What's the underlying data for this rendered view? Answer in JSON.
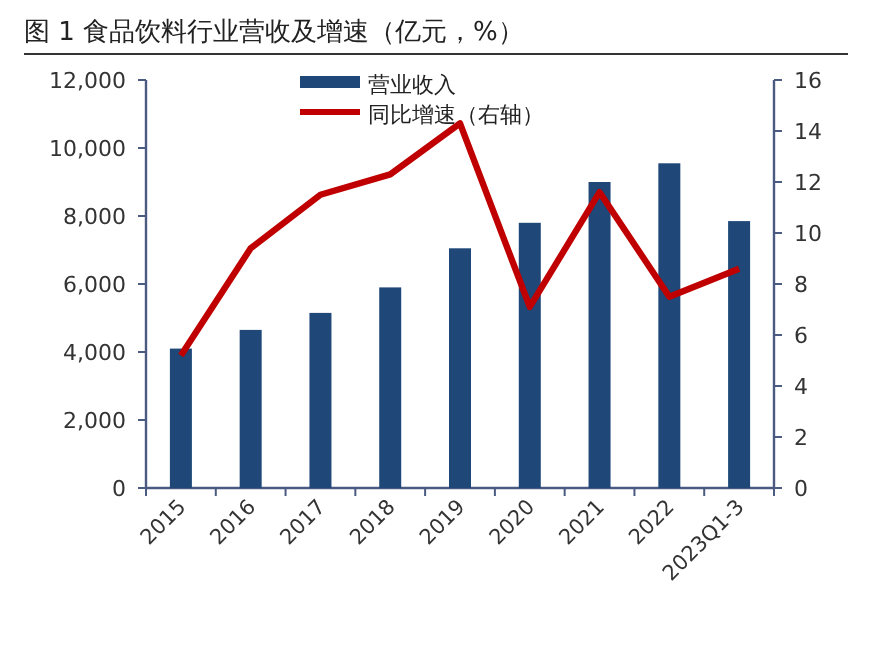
{
  "chart_data": {
    "type": "bar",
    "title": "图 1   食品饮料行业营收及增速（亿元，%）",
    "categories": [
      "2015",
      "2016",
      "2017",
      "2018",
      "2019",
      "2020",
      "2021",
      "2022",
      "2023Q1-3"
    ],
    "series": [
      {
        "name": "营业收入",
        "color": "#1f4778",
        "values": [
          4100,
          4650,
          5150,
          5900,
          7050,
          7800,
          9000,
          9550,
          7850
        ]
      },
      {
        "name": "同比增速（右轴）",
        "type": "line",
        "axis": "y2",
        "color": "#c00000",
        "values": [
          5.2,
          9.4,
          11.5,
          12.3,
          14.3,
          7.1,
          11.6,
          7.5,
          8.6
        ]
      }
    ],
    "ylim": [
      0,
      12000
    ],
    "yticks": [
      {
        "value": 0,
        "label": "0"
      },
      {
        "value": 2000,
        "label": "2,000"
      },
      {
        "value": 4000,
        "label": "4,000"
      },
      {
        "value": 6000,
        "label": "6,000"
      },
      {
        "value": 8000,
        "label": "8,000"
      },
      {
        "value": 10000,
        "label": "10,000"
      },
      {
        "value": 12000,
        "label": "12,000"
      }
    ],
    "y2lim": [
      0,
      16
    ],
    "y2ticks": [
      0,
      2,
      4,
      6,
      8,
      10,
      12,
      14,
      16
    ],
    "legend": "top",
    "grid": false,
    "marker": "none"
  }
}
